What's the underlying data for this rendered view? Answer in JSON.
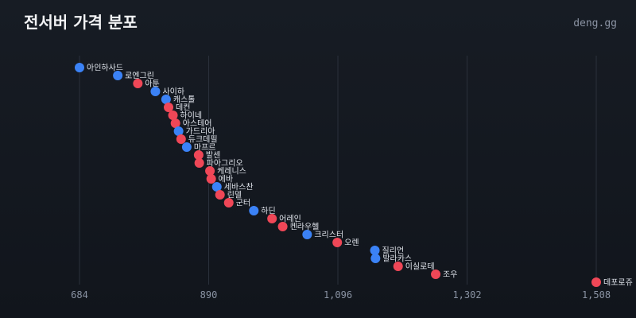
{
  "header": {
    "title": "전서버 가격 분포",
    "brand": "deng.gg"
  },
  "colors": {
    "blue": "#3b82f6",
    "red": "#ef4757",
    "grid": "#2a303b"
  },
  "chart_data": {
    "type": "scatter",
    "x_ticks": [
      684,
      890,
      1096,
      1302,
      1508
    ],
    "x_tick_labels": [
      "684",
      "890",
      "1,096",
      "1,302",
      "1,508"
    ],
    "xlim": [
      684,
      1508
    ],
    "points": [
      {
        "label": "아인하사드",
        "x": 684,
        "color": "blue"
      },
      {
        "label": "로엔그린",
        "x": 745,
        "color": "blue"
      },
      {
        "label": "아툰",
        "x": 777,
        "color": "red"
      },
      {
        "label": "사이하",
        "x": 805,
        "color": "blue"
      },
      {
        "label": "캐스톨",
        "x": 822,
        "color": "blue"
      },
      {
        "label": "데컨",
        "x": 826,
        "color": "red"
      },
      {
        "label": "하이네",
        "x": 833,
        "color": "red"
      },
      {
        "label": "아스테어",
        "x": 837,
        "color": "red"
      },
      {
        "label": "가드리아",
        "x": 842,
        "color": "blue"
      },
      {
        "label": "듀크데필",
        "x": 846,
        "color": "red"
      },
      {
        "label": "마프르",
        "x": 855,
        "color": "blue"
      },
      {
        "label": "발센",
        "x": 874,
        "color": "red"
      },
      {
        "label": "파아그리오",
        "x": 875,
        "color": "red"
      },
      {
        "label": "케레니스",
        "x": 892,
        "color": "red"
      },
      {
        "label": "에바",
        "x": 894,
        "color": "red"
      },
      {
        "label": "세바스찬",
        "x": 903,
        "color": "blue"
      },
      {
        "label": "린델",
        "x": 908,
        "color": "red"
      },
      {
        "label": "군터",
        "x": 922,
        "color": "red"
      },
      {
        "label": "하딘",
        "x": 962,
        "color": "blue"
      },
      {
        "label": "어레인",
        "x": 991,
        "color": "red"
      },
      {
        "label": "켄라우헬",
        "x": 1008,
        "color": "red"
      },
      {
        "label": "크리스터",
        "x": 1047,
        "color": "blue"
      },
      {
        "label": "오렌",
        "x": 1095,
        "color": "red"
      },
      {
        "label": "질리언",
        "x": 1155,
        "color": "blue"
      },
      {
        "label": "발라카스",
        "x": 1156,
        "color": "blue"
      },
      {
        "label": "이실로테",
        "x": 1192,
        "color": "red"
      },
      {
        "label": "조우",
        "x": 1252,
        "color": "red"
      },
      {
        "label": "데포로쥬",
        "x": 1508,
        "color": "red"
      }
    ]
  }
}
